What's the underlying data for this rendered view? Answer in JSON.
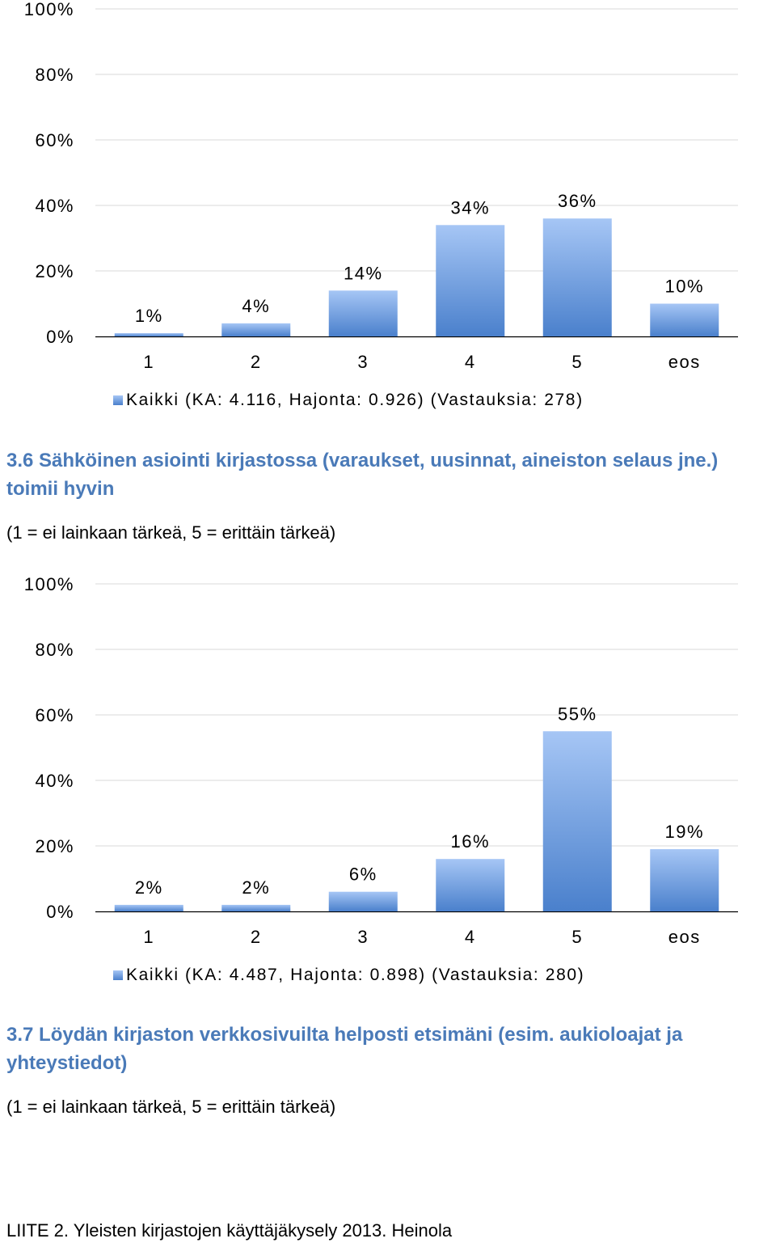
{
  "colors": {
    "bar_top": "#a6c6f5",
    "bar_bottom": "#4a80cc",
    "heading": "#4a7ab8",
    "grid": "#d9d9d9",
    "axis": "#000000"
  },
  "chart_data": [
    {
      "type": "bar",
      "categories": [
        "1",
        "2",
        "3",
        "4",
        "5",
        "eos"
      ],
      "values": [
        1,
        4,
        14,
        34,
        36,
        10
      ],
      "data_labels": [
        "1%",
        "4%",
        "14%",
        "34%",
        "36%",
        "10%"
      ],
      "y_ticks": [
        "0%",
        "20%",
        "40%",
        "60%",
        "80%",
        "100%"
      ],
      "ylim": [
        0,
        100
      ],
      "grid": true,
      "legend": "bottom-left",
      "series": [
        {
          "name": "Kaikki (KA: 4.116, Hajonta: 0.926) (Vastauksia: 278)",
          "values": [
            1,
            4,
            14,
            34,
            36,
            10
          ]
        }
      ]
    },
    {
      "type": "bar",
      "categories": [
        "1",
        "2",
        "3",
        "4",
        "5",
        "eos"
      ],
      "values": [
        2,
        2,
        6,
        16,
        55,
        19
      ],
      "data_labels": [
        "2%",
        "2%",
        "6%",
        "16%",
        "55%",
        "19%"
      ],
      "y_ticks": [
        "0%",
        "20%",
        "40%",
        "60%",
        "80%",
        "100%"
      ],
      "ylim": [
        0,
        100
      ],
      "grid": true,
      "legend": "bottom-left",
      "series": [
        {
          "name": "Kaikki (KA: 4.487, Hajonta: 0.898) (Vastauksia: 280)",
          "values": [
            2,
            2,
            6,
            16,
            55,
            19
          ]
        }
      ]
    }
  ],
  "sections": {
    "s36": {
      "title": "3.6 Sähköinen asiointi kirjastossa (varaukset, uusinnat, aineiston selaus jne.) toimii hyvin",
      "scale": "(1 = ei lainkaan tärkeä, 5 = erittäin tärkeä)"
    },
    "s37": {
      "title": "3.7 Löydän kirjaston verkkosivuilta helposti etsimäni (esim. aukioloajat ja yhteystiedot)",
      "scale": "(1 = ei lainkaan tärkeä, 5 = erittäin tärkeä)"
    }
  },
  "footer": "LIITE 2. Yleisten kirjastojen käyttäjäkysely 2013. Heinola"
}
